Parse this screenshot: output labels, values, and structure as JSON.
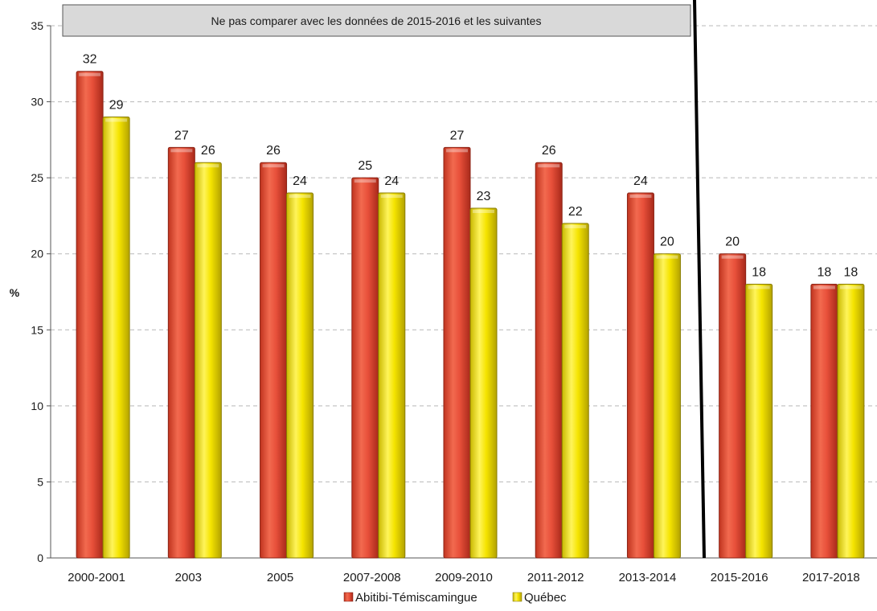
{
  "chart_data": {
    "type": "bar",
    "title": "",
    "xlabel": "",
    "ylabel": "%",
    "ylim": [
      0,
      35
    ],
    "yticks": [
      0,
      5,
      10,
      15,
      20,
      25,
      30,
      35
    ],
    "grid": true,
    "legend_position": "bottom",
    "categories": [
      "2000-2001",
      "2003",
      "2005",
      "2007-2008",
      "2009-2010",
      "2011-2012",
      "2013-2014",
      "2015-2016",
      "2017-2018"
    ],
    "series": [
      {
        "name": "Abitibi-Témiscamingue",
        "color": "#e8503a",
        "values": [
          32,
          27,
          26,
          25,
          27,
          26,
          24,
          20,
          18
        ]
      },
      {
        "name": "Québec",
        "color": "#f5e400",
        "values": [
          29,
          26,
          24,
          24,
          23,
          22,
          20,
          18,
          18
        ]
      }
    ],
    "annotation": "Ne pas comparer avec les données de 2015-2016 et les suivantes"
  }
}
